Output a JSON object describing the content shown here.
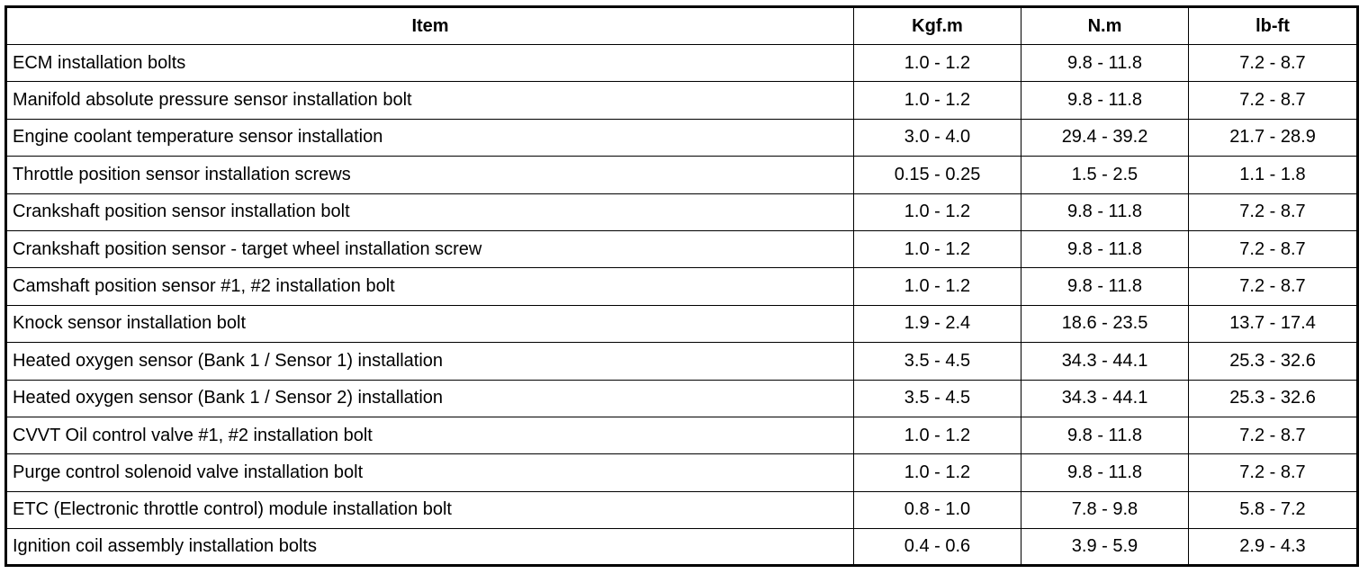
{
  "headers": {
    "item": "Item",
    "kgfm": "Kgf.m",
    "nm": "N.m",
    "lbft": "lb-ft"
  },
  "rows": [
    {
      "item": "ECM installation bolts",
      "kgfm": "1.0 - 1.2",
      "nm": "9.8 - 11.8",
      "lbft": "7.2 - 8.7"
    },
    {
      "item": "Manifold absolute pressure sensor installation bolt",
      "kgfm": "1.0 - 1.2",
      "nm": "9.8 - 11.8",
      "lbft": "7.2 - 8.7"
    },
    {
      "item": "Engine coolant temperature sensor installation",
      "kgfm": "3.0 - 4.0",
      "nm": "29.4 - 39.2",
      "lbft": "21.7 - 28.9"
    },
    {
      "item": "Throttle position sensor installation screws",
      "kgfm": "0.15 - 0.25",
      "nm": "1.5 - 2.5",
      "lbft": "1.1 - 1.8"
    },
    {
      "item": "Crankshaft position sensor installation bolt",
      "kgfm": "1.0 - 1.2",
      "nm": "9.8 - 11.8",
      "lbft": "7.2 - 8.7"
    },
    {
      "item": "Crankshaft position sensor - target wheel installation screw",
      "kgfm": "1.0 - 1.2",
      "nm": "9.8 - 11.8",
      "lbft": "7.2 - 8.7"
    },
    {
      "item": "Camshaft position sensor #1, #2 installation bolt",
      "kgfm": "1.0 - 1.2",
      "nm": "9.8 - 11.8",
      "lbft": "7.2 - 8.7"
    },
    {
      "item": "Knock sensor installation bolt",
      "kgfm": "1.9 - 2.4",
      "nm": "18.6 - 23.5",
      "lbft": "13.7 - 17.4"
    },
    {
      "item": "Heated oxygen sensor (Bank 1 / Sensor 1) installation",
      "kgfm": "3.5 - 4.5",
      "nm": "34.3 - 44.1",
      "lbft": "25.3 - 32.6"
    },
    {
      "item": "Heated oxygen sensor (Bank 1 / Sensor 2) installation",
      "kgfm": "3.5 - 4.5",
      "nm": "34.3 - 44.1",
      "lbft": "25.3 - 32.6"
    },
    {
      "item": "CVVT Oil control valve #1, #2 installation bolt",
      "kgfm": "1.0 - 1.2",
      "nm": "9.8 - 11.8",
      "lbft": "7.2 - 8.7"
    },
    {
      "item": "Purge control solenoid valve installation bolt",
      "kgfm": "1.0 - 1.2",
      "nm": "9.8 - 11.8",
      "lbft": "7.2 - 8.7"
    },
    {
      "item": "ETC (Electronic throttle control) module installation bolt",
      "kgfm": "0.8 - 1.0",
      "nm": "7.8 - 9.8",
      "lbft": "5.8 - 7.2"
    },
    {
      "item": "Ignition coil assembly installation bolts",
      "kgfm": "0.4 - 0.6",
      "nm": "3.9 - 5.9",
      "lbft": "2.9 - 4.3"
    }
  ]
}
